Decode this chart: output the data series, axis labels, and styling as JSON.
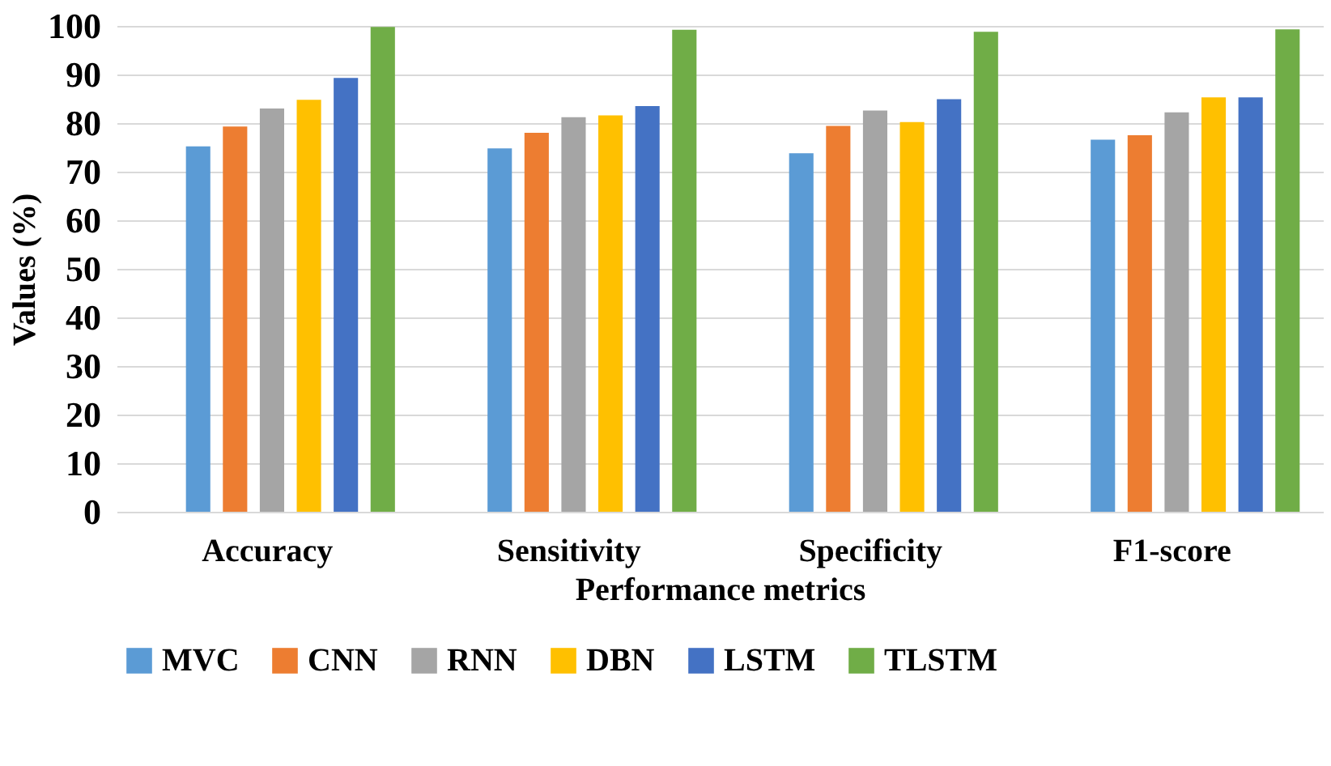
{
  "chart_data": {
    "type": "bar",
    "xlabel": "Performance metrics",
    "ylabel": "Values (%)",
    "categories": [
      "Accuracy",
      "Sensitivity",
      "Specificity",
      "F1-score"
    ],
    "series": [
      {
        "name": "MVC",
        "color": "#5b9bd5",
        "values": [
          75.2,
          74.8,
          73.8,
          76.6
        ]
      },
      {
        "name": "CNN",
        "color": "#ed7d31",
        "values": [
          79.3,
          78,
          79.4,
          77.5
        ]
      },
      {
        "name": "RNN",
        "color": "#a5a5a5",
        "values": [
          83,
          81.2,
          82.6,
          82.2
        ]
      },
      {
        "name": "DBN",
        "color": "#ffc000",
        "values": [
          84.8,
          81.6,
          80.2,
          85.3
        ]
      },
      {
        "name": "LSTM",
        "color": "#4472c4",
        "values": [
          89.3,
          83.5,
          84.9,
          85.3
        ]
      },
      {
        "name": "TLSTM",
        "color": "#70ad47",
        "values": [
          99.8,
          99.2,
          98.8,
          99.3
        ]
      }
    ],
    "ylim": [
      0,
      100
    ],
    "yticks": [
      0,
      10,
      20,
      30,
      40,
      50,
      60,
      70,
      80,
      90,
      100
    ],
    "grid": "y",
    "legend": "bottom"
  }
}
